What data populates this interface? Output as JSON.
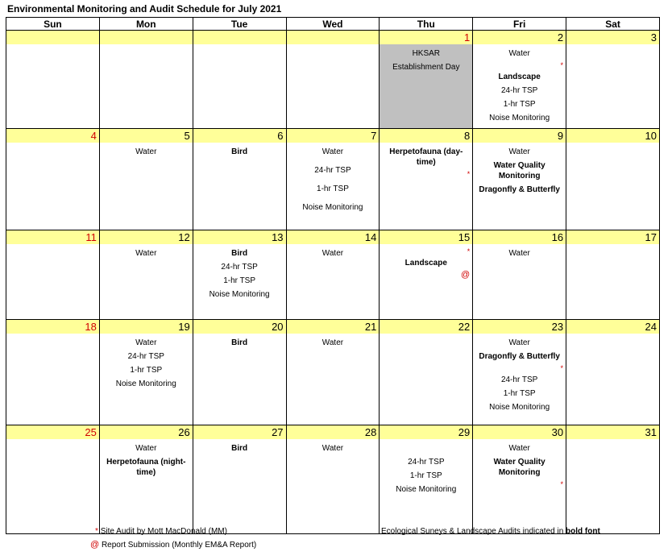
{
  "title": "Environmental Monitoring and Audit Schedule for July 2021",
  "days": [
    "Sun",
    "Mon",
    "Tue",
    "Wed",
    "Thu",
    "Fri",
    "Sat"
  ],
  "colors": {
    "date_band": "#ffff99",
    "holiday": "#c0c0c0",
    "red": "#d00000"
  },
  "weeks": [
    [
      {
        "n": "",
        "items": []
      },
      {
        "n": "",
        "items": []
      },
      {
        "n": "",
        "items": []
      },
      {
        "n": "",
        "items": []
      },
      {
        "n": "1",
        "red": true,
        "grey": true,
        "items": [
          {
            "t": "HKSAR"
          },
          {
            "t": "Establishment Day"
          }
        ]
      },
      {
        "n": "2",
        "items": [
          {
            "t": "Water"
          },
          {
            "t": "*",
            "m": 1
          },
          {
            "t": "Landscape",
            "b": 1
          },
          {
            "t": "24-hr TSP"
          },
          {
            "t": "1-hr TSP"
          },
          {
            "t": "Noise Monitoring"
          }
        ]
      },
      {
        "n": "3",
        "items": []
      }
    ],
    [
      {
        "n": "4",
        "red": true,
        "items": []
      },
      {
        "n": "5",
        "items": [
          {
            "t": "Water"
          }
        ]
      },
      {
        "n": "6",
        "items": [
          {
            "t": "Bird",
            "b": 1
          }
        ]
      },
      {
        "n": "7",
        "items": [
          {
            "t": "Water"
          },
          {
            "t": "24-hr TSP"
          },
          {
            "t": "1-hr TSP"
          },
          {
            "t": "Noise Monitoring"
          }
        ]
      },
      {
        "n": "8",
        "items": [
          {
            "t": "Herpetofauna (day-time)",
            "b": 1
          },
          {
            "t": "*",
            "m": 1
          }
        ]
      },
      {
        "n": "9",
        "items": [
          {
            "t": "Water"
          },
          {
            "t": "Water Quality Monitoring",
            "b": 1
          },
          {
            "t": "Dragonfly & Butterfly",
            "b": 1
          }
        ]
      },
      {
        "n": "10",
        "items": []
      }
    ],
    [
      {
        "n": "11",
        "red": true,
        "items": []
      },
      {
        "n": "12",
        "items": [
          {
            "t": "Water"
          }
        ]
      },
      {
        "n": "13",
        "items": [
          {
            "t": "Bird",
            "b": 1
          },
          {
            "t": "24-hr TSP"
          },
          {
            "t": "1-hr TSP"
          },
          {
            "t": "Noise Monitoring"
          }
        ]
      },
      {
        "n": "14",
        "items": [
          {
            "t": "Water"
          }
        ]
      },
      {
        "n": "15",
        "items": [
          {
            "t": "*",
            "m": 1
          },
          {
            "t": "Landscape",
            "b": 1
          },
          {
            "t": "@",
            "m": 1,
            "at": 1
          }
        ]
      },
      {
        "n": "16",
        "items": [
          {
            "t": "Water"
          }
        ]
      },
      {
        "n": "17",
        "items": []
      }
    ],
    [
      {
        "n": "18",
        "red": true,
        "items": []
      },
      {
        "n": "19",
        "items": [
          {
            "t": "Water"
          },
          {
            "t": "24-hr TSP"
          },
          {
            "t": "1-hr TSP"
          },
          {
            "t": "Noise Monitoring"
          }
        ]
      },
      {
        "n": "20",
        "items": [
          {
            "t": "Bird",
            "b": 1
          }
        ]
      },
      {
        "n": "21",
        "items": [
          {
            "t": "Water"
          }
        ]
      },
      {
        "n": "22",
        "items": []
      },
      {
        "n": "23",
        "items": [
          {
            "t": "Water"
          },
          {
            "t": "Dragonfly & Butterfly",
            "b": 1
          },
          {
            "t": "*",
            "m": 1
          },
          {
            "t": "24-hr TSP"
          },
          {
            "t": "1-hr TSP"
          },
          {
            "t": "Noise Monitoring"
          }
        ]
      },
      {
        "n": "24",
        "items": []
      }
    ],
    [
      {
        "n": "25",
        "red": true,
        "items": []
      },
      {
        "n": "26",
        "items": [
          {
            "t": "Water"
          },
          {
            "t": "Herpetofauna (night-time)",
            "b": 1
          }
        ]
      },
      {
        "n": "27",
        "items": [
          {
            "t": "Bird",
            "b": 1
          }
        ]
      },
      {
        "n": "28",
        "items": [
          {
            "t": "Water"
          }
        ]
      },
      {
        "n": "29",
        "items": [
          {
            "t": "24-hr TSP"
          },
          {
            "t": "1-hr TSP"
          },
          {
            "t": "Noise Monitoring"
          }
        ]
      },
      {
        "n": "30",
        "items": [
          {
            "t": "Water"
          },
          {
            "t": "Water Quality Monitoring",
            "b": 1
          },
          {
            "t": "*",
            "m": 1
          }
        ]
      },
      {
        "n": "31",
        "items": []
      }
    ]
  ],
  "legend": {
    "audit_mark": "*",
    "audit_text": "Site Audit by Mott MacDonald (MM)",
    "report_mark": "@",
    "report_text": "Report Submission (Monthly EM&A Report)",
    "bold_note": "Ecological Suneys & Landscape Audits indicated in",
    "bold_word": "bold  font"
  }
}
